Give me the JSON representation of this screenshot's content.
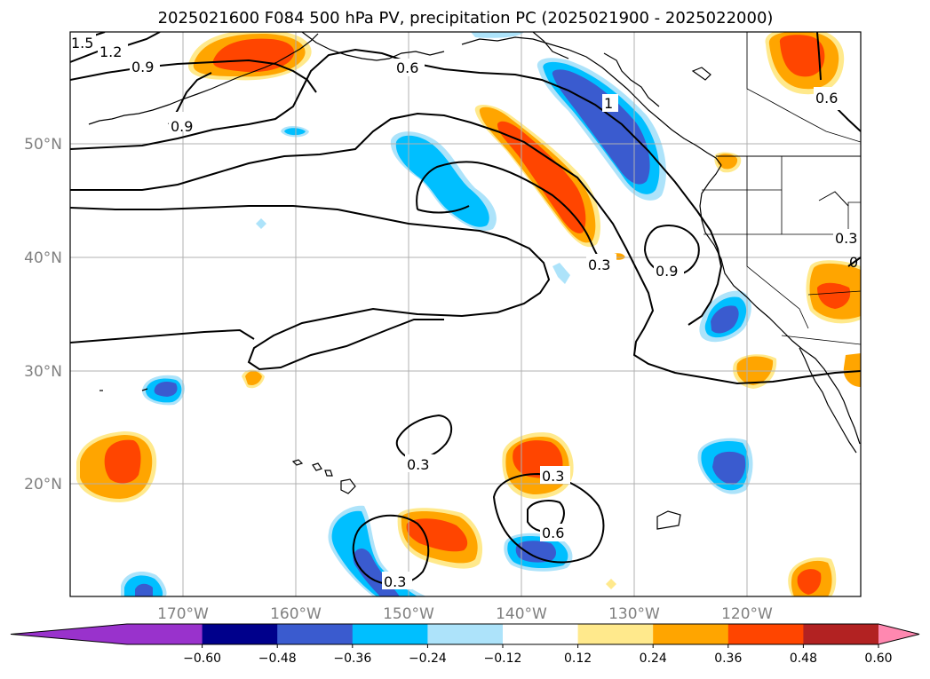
{
  "title": "2025021600 F084 500 hPa PV, precipitation PC (2025021900 - 2025022000)",
  "map": {
    "lon_labels": [
      "170°W",
      "160°W",
      "150°W",
      "140°W",
      "130°W",
      "120°W"
    ],
    "lat_labels": [
      "50°N",
      "40°N",
      "30°N",
      "20°N"
    ],
    "gridlines": true,
    "contour_labels": [
      "1.5",
      "1.2",
      "0.9",
      "0.9",
      "0.6",
      "0.6",
      "0.3",
      "0.9",
      "0.3",
      "0.3",
      "0.6",
      "0.3",
      "0.3",
      "1",
      "0.3",
      "0"
    ]
  },
  "colorbar": {
    "ticks": [
      "−0.60",
      "−0.48",
      "−0.36",
      "−0.24",
      "−0.12",
      "0.12",
      "0.24",
      "0.36",
      "0.48",
      "0.60"
    ],
    "colors": [
      "#9932CC",
      "#9932CC",
      "#00008B",
      "#3A5BCF",
      "#00BFFF",
      "#ADE3FA",
      "#FFFFFF",
      "#FFE98C",
      "#FFA500",
      "#FF4500",
      "#B22222",
      "#FF88B0"
    ],
    "extend": "both"
  }
}
